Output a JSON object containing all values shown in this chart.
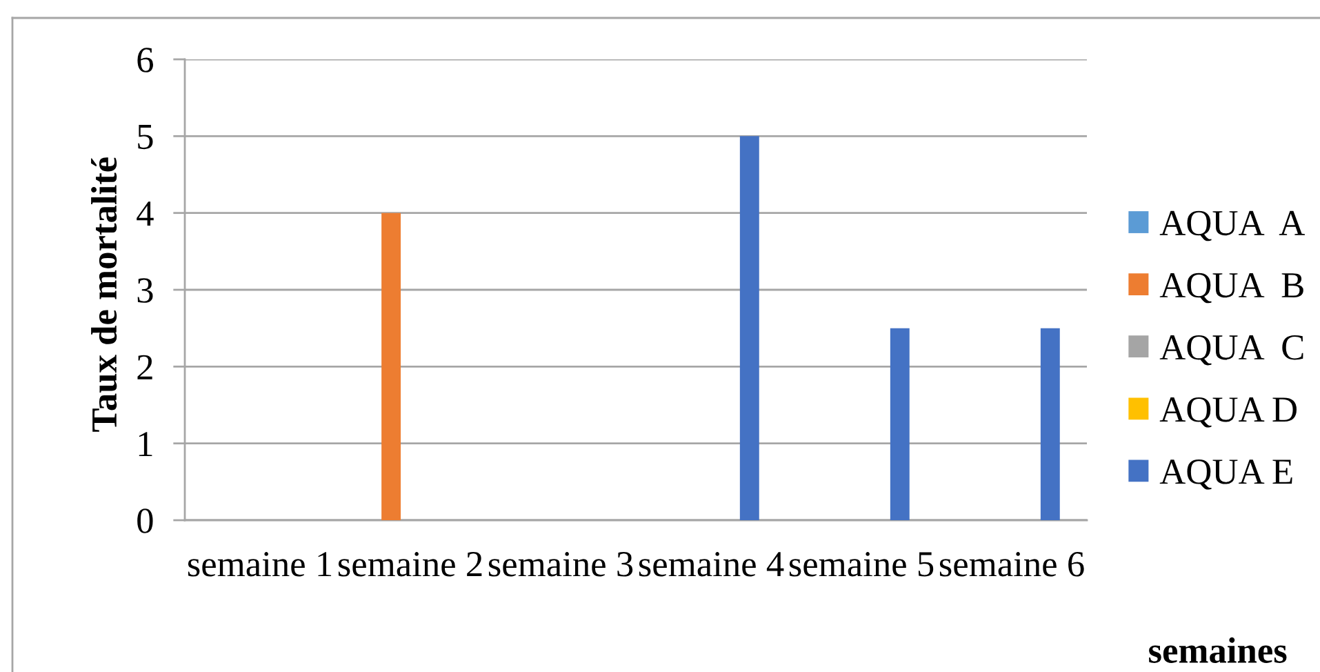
{
  "chart_data": {
    "type": "bar",
    "xlabel": "semaines",
    "ylabel": "Taux de mortalité",
    "categories": [
      "semaine 1",
      "semaine 2",
      "semaine 3",
      "semaine 4",
      "semaine 5",
      "semaine 6"
    ],
    "series": [
      {
        "name": "AQUA  A",
        "color": "#5b9bd5",
        "values": [
          0,
          0,
          0,
          0,
          0,
          0
        ]
      },
      {
        "name": "AQUA  B",
        "color": "#ed7d31",
        "values": [
          0,
          4,
          0,
          0,
          0,
          0
        ]
      },
      {
        "name": "AQUA  C",
        "color": "#a5a5a5",
        "values": [
          0,
          0,
          0,
          0,
          0,
          0
        ]
      },
      {
        "name": "AQUA D",
        "color": "#ffc000",
        "values": [
          0,
          0,
          0,
          0,
          0,
          0
        ]
      },
      {
        "name": "AQUA E",
        "color": "#4472c4",
        "values": [
          0,
          0,
          0,
          5,
          2.5,
          2.5
        ]
      }
    ],
    "ylim": [
      0,
      6
    ],
    "yticks": [
      0,
      1,
      2,
      3,
      4,
      5,
      6
    ],
    "grid": "y",
    "legend": "right"
  }
}
